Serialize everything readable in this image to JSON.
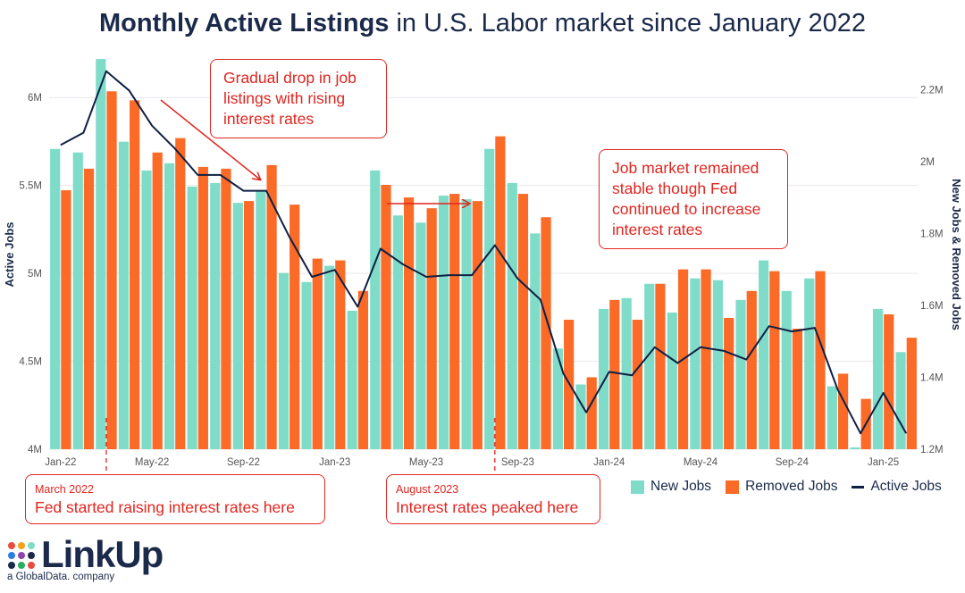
{
  "title": {
    "bold": "Monthly Active Listings",
    "rest": " in U.S. Labor market since January 2022"
  },
  "chart_data": {
    "type": "bar",
    "left_axis": {
      "label": "Active Jobs",
      "min": 4000000,
      "max": 6500000,
      "ticks": [
        "4M",
        "4.5M",
        "5M",
        "5.5M",
        "6M"
      ]
    },
    "right_axis": {
      "label": "New Jobs & Removed Jobs",
      "min": 1200000,
      "max": 2200000,
      "ticks": [
        "1.2M",
        "1.4M",
        "1.6M",
        "1.8M",
        "2M",
        "2.2M"
      ]
    },
    "x_ticks": [
      "Jan-22",
      "May-22",
      "Sep-22",
      "Jan-23",
      "May-23",
      "Sep-23",
      "Jan-24",
      "May-24",
      "Sep-24",
      "Jan-25"
    ],
    "x_tick_months": [
      0,
      4,
      8,
      12,
      16,
      20,
      24,
      28,
      32,
      36
    ],
    "months": [
      "Jan-22",
      "Feb-22",
      "Mar-22",
      "Apr-22",
      "May-22",
      "Jun-22",
      "Jul-22",
      "Aug-22",
      "Sep-22",
      "Oct-22",
      "Nov-22",
      "Dec-22",
      "Jan-23",
      "Feb-23",
      "Mar-23",
      "Apr-23",
      "May-23",
      "Jun-23",
      "Jul-23",
      "Aug-23",
      "Sep-23",
      "Oct-23",
      "Nov-23",
      "Dec-23",
      "Jan-24",
      "Feb-24",
      "Mar-24",
      "Apr-24",
      "May-24",
      "Jun-24",
      "Jul-24",
      "Aug-24",
      "Sep-24",
      "Oct-24",
      "Nov-24",
      "Dec-24",
      "Jan-25",
      "Feb-25"
    ],
    "series": [
      {
        "name": "New Jobs",
        "axis": "right",
        "color": "#7fdcc9",
        "values": [
          2035,
          2025,
          2285,
          2055,
          1975,
          1995,
          1930,
          1940,
          1885,
          1920,
          1690,
          1665,
          1710,
          1585,
          1975,
          1850,
          1830,
          1905,
          1895,
          2035,
          1940,
          1800,
          1480,
          1380,
          1590,
          1620,
          1660,
          1580,
          1675,
          1670,
          1615,
          1725,
          1640,
          1675,
          1375,
          1205,
          1590,
          1470
        ]
      },
      {
        "name": "Removed Jobs",
        "axis": "right",
        "color": "#fb6a26",
        "values": [
          1920,
          1980,
          2195,
          2170,
          2025,
          2065,
          1985,
          1980,
          1890,
          1990,
          1880,
          1730,
          1725,
          1640,
          1935,
          1900,
          1870,
          1910,
          1890,
          2070,
          1910,
          1845,
          1560,
          1400,
          1615,
          1560,
          1660,
          1700,
          1700,
          1565,
          1640,
          1695,
          1535,
          1695,
          1410,
          1340,
          1575,
          1510
        ]
      }
    ],
    "line": {
      "name": "Active Jobs",
      "axis": "left",
      "color": "#0f2044",
      "values": [
        5.73,
        5.8,
        6.15,
        6.04,
        5.84,
        5.71,
        5.56,
        5.56,
        5.47,
        5.47,
        5.21,
        4.98,
        5.02,
        4.81,
        5.14,
        5.05,
        4.98,
        4.99,
        4.99,
        5.16,
        4.97,
        4.85,
        4.43,
        4.21,
        4.44,
        4.42,
        4.58,
        4.49,
        4.58,
        4.56,
        4.51,
        4.7,
        4.67,
        4.69,
        4.34,
        4.09,
        4.32,
        4.09
      ]
    }
  },
  "annotations": {
    "drop": "Gradual drop in job listings with rising interest rates",
    "stable": "Job market remained stable though Fed continued to increase interest rates",
    "march_date": "March 2022",
    "march_text": "Fed started raising interest rates here",
    "aug_date": "August 2023",
    "aug_text": "Interest rates peaked here"
  },
  "legend": {
    "new": "New Jobs",
    "removed": "Removed Jobs",
    "active": "Active Jobs"
  },
  "brand": {
    "name": "LinkUp",
    "tagline": "a GlobalData. company"
  },
  "colors": {
    "new": "#7fdcc9",
    "removed": "#fb6a26",
    "active": "#0f2044",
    "accent": "#e0251f"
  }
}
